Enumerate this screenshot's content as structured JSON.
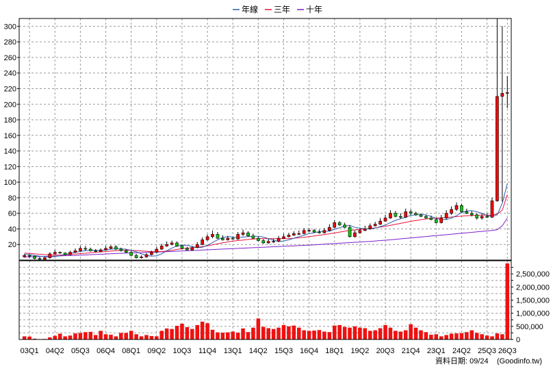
{
  "colors": {
    "annual_line": "#2a5db0",
    "three_year_line": "#e8123c",
    "ten_year_line": "#7a1fc8",
    "up_candle": "#f40a0a",
    "down_candle": "#18c018",
    "volume_bar": "#ee1111",
    "grid": "#999999"
  },
  "legend": {
    "items": [
      {
        "label": "年線",
        "color": "#2a5db0"
      },
      {
        "label": "三年",
        "color": "#e8123c"
      },
      {
        "label": "十年",
        "color": "#7a1fc8"
      }
    ]
  },
  "footer": {
    "date_text": "資料日期: 09/24",
    "source_text": "(Goodinfo.tw)"
  },
  "chart_data": [
    {
      "type": "candlestick",
      "title": "",
      "x_tick_labels": [
        "03Q1",
        "04Q2",
        "05Q3",
        "06Q4",
        "08Q1",
        "09Q2",
        "10Q3",
        "11Q4",
        "13Q1",
        "14Q2",
        "15Q3",
        "16Q4",
        "18Q1",
        "19Q2",
        "20Q3",
        "21Q4",
        "23Q1",
        "24Q2",
        "25Q3",
        "26Q3"
      ],
      "y_ticks": [
        20,
        40,
        60,
        80,
        100,
        120,
        140,
        160,
        180,
        200,
        220,
        240,
        260,
        280,
        300
      ],
      "ylim": [
        0,
        310
      ],
      "grid": true,
      "legend_position": "top-center",
      "quarters": [
        "02Q4",
        "03Q1",
        "03Q2",
        "03Q3",
        "03Q4",
        "04Q1",
        "04Q2",
        "04Q3",
        "04Q4",
        "05Q1",
        "05Q2",
        "05Q3",
        "05Q4",
        "06Q1",
        "06Q2",
        "06Q3",
        "06Q4",
        "07Q1",
        "07Q2",
        "07Q3",
        "07Q4",
        "08Q1",
        "08Q2",
        "08Q3",
        "08Q4",
        "09Q1",
        "09Q2",
        "09Q3",
        "09Q4",
        "10Q1",
        "10Q2",
        "10Q3",
        "10Q4",
        "11Q1",
        "11Q2",
        "11Q3",
        "11Q4",
        "12Q1",
        "12Q2",
        "12Q3",
        "12Q4",
        "13Q1",
        "13Q2",
        "13Q3",
        "13Q4",
        "14Q1",
        "14Q2",
        "14Q3",
        "14Q4",
        "15Q1",
        "15Q2",
        "15Q3",
        "15Q4",
        "16Q1",
        "16Q2",
        "16Q3",
        "16Q4",
        "17Q1",
        "17Q2",
        "17Q3",
        "17Q4",
        "18Q1",
        "18Q2",
        "18Q3",
        "18Q4",
        "19Q1",
        "19Q2",
        "19Q3",
        "19Q4",
        "20Q1",
        "20Q2",
        "20Q3",
        "20Q4",
        "21Q1",
        "21Q2",
        "21Q3",
        "21Q4",
        "22Q1",
        "22Q2",
        "22Q3",
        "22Q4",
        "23Q1",
        "23Q2",
        "23Q3",
        "23Q4",
        "24Q1",
        "24Q2",
        "24Q3",
        "24Q4",
        "25Q1",
        "25Q2",
        "25Q3",
        "25Q4",
        "26Q1",
        "26Q2",
        "26Q3"
      ],
      "open": [
        4,
        6,
        5,
        2,
        1,
        3,
        8,
        10,
        9,
        7,
        10,
        12,
        15,
        14,
        12,
        11,
        13,
        15,
        17,
        14,
        12,
        10,
        6,
        3,
        4,
        7,
        10,
        14,
        18,
        20,
        22,
        18,
        15,
        13,
        16,
        20,
        26,
        30,
        33,
        28,
        26,
        28,
        27,
        33,
        35,
        31,
        28,
        25,
        22,
        24,
        24,
        28,
        30,
        32,
        34,
        34,
        38,
        38,
        36,
        35,
        38,
        42,
        48,
        45,
        42,
        30,
        35,
        38,
        40,
        44,
        46,
        50,
        54,
        60,
        56,
        55,
        62,
        60,
        58,
        56,
        54,
        52,
        48,
        54,
        60,
        65,
        70,
        62,
        60,
        58,
        54,
        56,
        55,
        76,
        210,
        214
      ],
      "close": [
        6,
        5,
        2,
        1,
        3,
        8,
        10,
        9,
        7,
        10,
        12,
        15,
        14,
        12,
        11,
        13,
        15,
        17,
        14,
        12,
        10,
        6,
        3,
        4,
        7,
        10,
        14,
        18,
        20,
        22,
        18,
        15,
        13,
        16,
        20,
        26,
        30,
        33,
        28,
        26,
        28,
        27,
        33,
        35,
        31,
        28,
        25,
        22,
        24,
        24,
        28,
        30,
        32,
        34,
        34,
        38,
        38,
        36,
        35,
        38,
        42,
        48,
        45,
        42,
        30,
        35,
        38,
        40,
        44,
        46,
        50,
        54,
        60,
        56,
        55,
        62,
        60,
        58,
        56,
        54,
        52,
        48,
        54,
        60,
        65,
        70,
        62,
        60,
        58,
        54,
        56,
        55,
        76,
        210,
        214,
        215
      ],
      "high": [
        8,
        7,
        6,
        4,
        4,
        10,
        13,
        11,
        10,
        12,
        15,
        18,
        18,
        16,
        14,
        15,
        18,
        19,
        19,
        16,
        14,
        12,
        8,
        6,
        9,
        12,
        17,
        21,
        24,
        25,
        24,
        20,
        17,
        18,
        23,
        29,
        33,
        38,
        36,
        32,
        31,
        30,
        36,
        39,
        37,
        34,
        30,
        27,
        27,
        27,
        31,
        34,
        35,
        37,
        38,
        41,
        41,
        40,
        39,
        41,
        46,
        51,
        50,
        48,
        45,
        38,
        41,
        44,
        47,
        49,
        54,
        58,
        64,
        63,
        60,
        66,
        65,
        62,
        60,
        58,
        57,
        54,
        58,
        64,
        69,
        74,
        72,
        66,
        63,
        60,
        60,
        60,
        80,
        310,
        300,
        236
      ],
      "low": [
        3,
        3,
        1,
        0,
        0,
        2,
        7,
        8,
        6,
        6,
        9,
        11,
        12,
        11,
        10,
        10,
        12,
        14,
        13,
        11,
        9,
        5,
        2,
        2,
        3,
        6,
        9,
        13,
        17,
        19,
        17,
        14,
        12,
        12,
        15,
        19,
        25,
        28,
        27,
        25,
        25,
        26,
        26,
        31,
        30,
        27,
        24,
        21,
        21,
        22,
        23,
        27,
        29,
        31,
        32,
        33,
        36,
        35,
        34,
        34,
        37,
        41,
        44,
        41,
        29,
        29,
        34,
        37,
        39,
        43,
        45,
        49,
        53,
        55,
        53,
        54,
        58,
        57,
        55,
        53,
        51,
        47,
        47,
        52,
        58,
        63,
        61,
        59,
        56,
        52,
        52,
        54,
        54,
        75,
        75,
        195
      ],
      "ma_annual": [
        7.5,
        7,
        6,
        5,
        4.5,
        4,
        4.5,
        5.5,
        7,
        8.5,
        10,
        11,
        12,
        12.5,
        12.5,
        12.5,
        13,
        14,
        14.5,
        14.5,
        14,
        12.5,
        10.5,
        8,
        6,
        5,
        5.5,
        8,
        12,
        15.5,
        18,
        19,
        19,
        17.5,
        16,
        16.5,
        19,
        22.5,
        26,
        29,
        30,
        29.5,
        29,
        29.5,
        30,
        30.5,
        30.5,
        29.5,
        27.5,
        25.5,
        24,
        24.5,
        26,
        28,
        30,
        32,
        34,
        35,
        36.5,
        37,
        37,
        39.5,
        41.5,
        43.5,
        44.5,
        42,
        41,
        40,
        40,
        41,
        43,
        45,
        48,
        51,
        53,
        55,
        57.5,
        58,
        58.5,
        58,
        56,
        53.5,
        52,
        52,
        54,
        57,
        61,
        63,
        63.5,
        62,
        60,
        57,
        56,
        58,
        73,
        98
      ],
      "ma_3year": [
        9,
        8.5,
        8,
        7.5,
        7,
        6.8,
        6.5,
        6.5,
        6.8,
        7.2,
        7.8,
        8.3,
        8.8,
        9.4,
        10,
        10.5,
        11,
        11.5,
        12,
        12.4,
        12.6,
        12.5,
        12.2,
        11.8,
        11.3,
        10.9,
        10.8,
        11,
        11.6,
        12.5,
        13.6,
        14.6,
        15.3,
        15.8,
        16.4,
        17.2,
        18.2,
        19.5,
        20.8,
        22.1,
        23.3,
        24.3,
        25,
        25.7,
        26.4,
        27,
        27.4,
        27.6,
        27.6,
        27.5,
        27.4,
        27.4,
        27.6,
        28,
        28.6,
        29.3,
        30.1,
        30.9,
        31.8,
        32.7,
        33.7,
        34.8,
        35.9,
        37,
        38,
        38.6,
        39.2,
        39.9,
        40.6,
        41.4,
        42.3,
        43.3,
        44.5,
        45.8,
        47.1,
        48.4,
        49.7,
        50.8,
        51.8,
        52.7,
        53.4,
        53.9,
        54.3,
        54.7,
        55.2,
        55.8,
        56.4,
        56.9,
        57.3,
        57.5,
        57.6,
        57.6,
        57.8,
        59,
        64,
        84
      ],
      "ma_10year": [
        4,
        4.2,
        4.4,
        4.6,
        4.8,
        5,
        5.2,
        5.4,
        5.6,
        5.8,
        6,
        6.3,
        6.6,
        6.9,
        7.2,
        7.5,
        7.8,
        8.1,
        8.4,
        8.7,
        9,
        9.2,
        9.4,
        9.6,
        9.8,
        10,
        10.2,
        10.5,
        10.8,
        11.1,
        11.4,
        11.7,
        12,
        12.3,
        12.6,
        12.9,
        13.2,
        13.5,
        13.8,
        14.1,
        14.4,
        14.7,
        15,
        15.3,
        15.6,
        15.9,
        16.2,
        16.5,
        16.8,
        17.1,
        17.4,
        17.7,
        18,
        18.3,
        18.6,
        18.9,
        19.2,
        19.6,
        20,
        20.4,
        20.8,
        21.2,
        21.6,
        22,
        22.4,
        22.8,
        23.2,
        23.6,
        24,
        24.5,
        25,
        25.5,
        26,
        26.6,
        27.2,
        27.8,
        28.4,
        29,
        29.6,
        30.2,
        30.8,
        31.4,
        32,
        32.6,
        33.2,
        33.8,
        34.4,
        35,
        35.6,
        36.2,
        36.8,
        37.4,
        38,
        39,
        44,
        54
      ]
    },
    {
      "type": "bar",
      "title": "",
      "y_ticks": [
        0,
        250000,
        500000,
        750000,
        1000000,
        1250000,
        1500000,
        1750000,
        2000000,
        2250000,
        2500000,
        2750000
      ],
      "y_tick_labels": [
        "0",
        "",
        "500,000",
        "",
        "1,000,000",
        "",
        "1,500,000",
        "",
        "2,000,000",
        "",
        "2,500,000",
        ""
      ],
      "ylim": [
        0,
        3000000
      ],
      "grid": true,
      "values": [
        120000,
        110000,
        30000,
        10000,
        20000,
        80000,
        140000,
        220000,
        120000,
        150000,
        230000,
        250000,
        280000,
        290000,
        170000,
        330000,
        200000,
        180000,
        120000,
        250000,
        250000,
        330000,
        200000,
        120000,
        170000,
        130000,
        120000,
        330000,
        420000,
        400000,
        520000,
        600000,
        470000,
        400000,
        550000,
        680000,
        620000,
        370000,
        270000,
        260000,
        270000,
        300000,
        260000,
        420000,
        280000,
        450000,
        800000,
        480000,
        430000,
        400000,
        450000,
        550000,
        500000,
        530000,
        450000,
        350000,
        330000,
        340000,
        360000,
        300000,
        280000,
        530000,
        550000,
        480000,
        450000,
        500000,
        450000,
        430000,
        330000,
        350000,
        430000,
        550000,
        450000,
        330000,
        300000,
        350000,
        580000,
        450000,
        350000,
        280000,
        180000,
        200000,
        120000,
        170000,
        220000,
        230000,
        240000,
        280000,
        350000,
        250000,
        200000,
        150000,
        120000,
        230000,
        200000,
        2900000
      ]
    }
  ]
}
